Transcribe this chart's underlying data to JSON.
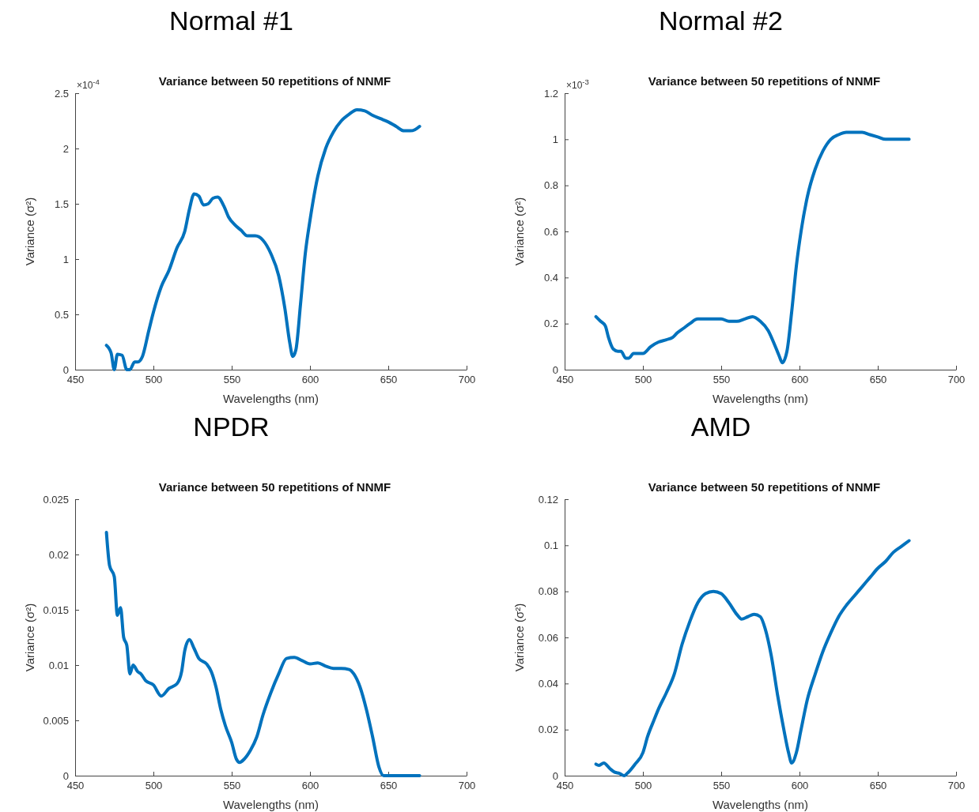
{
  "chart_data": [
    {
      "type": "line",
      "title": "Normal #1",
      "subtitle": "Variance between 50 repetitions of NNMF",
      "xlabel": "Wavelengths (nm)",
      "ylabel": "Variance (σ²)",
      "annotations": [
        "×10$^{-4}$"
      ],
      "xlim": [
        450,
        700
      ],
      "xticks": [
        450,
        500,
        550,
        600,
        650,
        700
      ],
      "ylim": [
        0,
        2.5
      ],
      "yticks": [
        0,
        0.5,
        1,
        1.5,
        2,
        2.5
      ],
      "series": [
        {
          "color": "#0072bd",
          "x": [
            470,
            473,
            475,
            477,
            480,
            483,
            485,
            488,
            490,
            493,
            497,
            500,
            505,
            510,
            515,
            520,
            523,
            526,
            529,
            532,
            535,
            538,
            541,
            545,
            548,
            552,
            556,
            560,
            565,
            570,
            575,
            580,
            584,
            587,
            589,
            591,
            594,
            597,
            600,
            605,
            610,
            615,
            620,
            625,
            630,
            635,
            640,
            645,
            650,
            655,
            660,
            664,
            667,
            670
          ],
          "values": [
            0.22,
            0.15,
            0.0,
            0.14,
            0.13,
            0.0,
            0.0,
            0.07,
            0.07,
            0.12,
            0.35,
            0.52,
            0.75,
            0.9,
            1.1,
            1.25,
            1.45,
            1.59,
            1.57,
            1.49,
            1.5,
            1.55,
            1.56,
            1.48,
            1.38,
            1.31,
            1.26,
            1.21,
            1.21,
            1.17,
            1.05,
            0.85,
            0.55,
            0.25,
            0.12,
            0.18,
            0.6,
            1.05,
            1.35,
            1.75,
            2.0,
            2.15,
            2.25,
            2.31,
            2.35,
            2.34,
            2.3,
            2.27,
            2.24,
            2.2,
            2.16,
            2.16,
            2.17,
            2.2
          ]
        }
      ]
    },
    {
      "type": "line",
      "title": "Normal #2",
      "subtitle": "Variance between 50 repetitions of NNMF",
      "xlabel": "Wavelengths (nm)",
      "ylabel": "Variance (σ²)",
      "annotations": [
        "×10$^{-3}$"
      ],
      "xlim": [
        450,
        700
      ],
      "xticks": [
        450,
        500,
        550,
        600,
        650,
        700
      ],
      "ylim": [
        0,
        1.2
      ],
      "yticks": [
        0,
        0.2,
        0.4,
        0.6,
        0.8,
        1,
        1.2
      ],
      "series": [
        {
          "color": "#0072bd",
          "x": [
            470,
            473,
            476,
            478,
            481,
            484,
            486,
            489,
            491,
            494,
            497,
            500,
            505,
            510,
            515,
            519,
            522,
            526,
            530,
            535,
            540,
            545,
            550,
            555,
            560,
            565,
            570,
            575,
            580,
            584,
            587,
            589,
            592,
            595,
            598,
            601,
            605,
            610,
            615,
            620,
            625,
            630,
            635,
            640,
            645,
            650,
            655,
            660,
            665,
            670
          ],
          "values": [
            0.23,
            0.21,
            0.19,
            0.14,
            0.09,
            0.08,
            0.08,
            0.05,
            0.05,
            0.07,
            0.07,
            0.07,
            0.1,
            0.12,
            0.13,
            0.14,
            0.16,
            0.18,
            0.2,
            0.22,
            0.22,
            0.22,
            0.22,
            0.21,
            0.21,
            0.22,
            0.23,
            0.21,
            0.17,
            0.11,
            0.06,
            0.03,
            0.08,
            0.25,
            0.45,
            0.6,
            0.75,
            0.87,
            0.95,
            1.0,
            1.02,
            1.03,
            1.03,
            1.03,
            1.02,
            1.01,
            1.0,
            1.0,
            1.0,
            1.0
          ]
        }
      ]
    },
    {
      "type": "line",
      "title": "NPDR",
      "subtitle": "Variance between 50 repetitions of NNMF",
      "xlabel": "Wavelengths (nm)",
      "ylabel": "Variance (σ²)",
      "xlim": [
        450,
        700
      ],
      "xticks": [
        450,
        500,
        550,
        600,
        650,
        700
      ],
      "ylim": [
        0,
        0.025
      ],
      "yticks": [
        0,
        0.005,
        0.01,
        0.015,
        0.02,
        0.025
      ],
      "series": [
        {
          "color": "#0072bd",
          "x": [
            470,
            472,
            475,
            477,
            479,
            481,
            483,
            485,
            487,
            490,
            492,
            495,
            500,
            505,
            510,
            515,
            518,
            520,
            523,
            526,
            529,
            534,
            537,
            540,
            543,
            546,
            550,
            553,
            555,
            558,
            562,
            566,
            570,
            575,
            580,
            585,
            590,
            595,
            600,
            605,
            610,
            615,
            620,
            625,
            628,
            632,
            636,
            640,
            644,
            647,
            650,
            660,
            670
          ],
          "values": [
            0.022,
            0.019,
            0.018,
            0.0145,
            0.0152,
            0.0125,
            0.0118,
            0.0092,
            0.01,
            0.0094,
            0.0092,
            0.0086,
            0.0082,
            0.0072,
            0.0079,
            0.0083,
            0.0094,
            0.0113,
            0.0123,
            0.0115,
            0.0106,
            0.0101,
            0.0094,
            0.008,
            0.006,
            0.0045,
            0.003,
            0.0015,
            0.0012,
            0.0015,
            0.0023,
            0.0035,
            0.0055,
            0.0075,
            0.0092,
            0.0106,
            0.0107,
            0.0104,
            0.0101,
            0.0102,
            0.0099,
            0.0097,
            0.0097,
            0.0096,
            0.0092,
            0.008,
            0.006,
            0.0035,
            0.0008,
            0.0,
            0.0,
            0.0,
            0.0
          ]
        }
      ]
    },
    {
      "type": "line",
      "title": "AMD",
      "subtitle": "Variance between 50 repetitions of NNMF",
      "xlabel": "Wavelengths (nm)",
      "ylabel": "Variance (σ²)",
      "xlim": [
        450,
        700
      ],
      "xticks": [
        450,
        500,
        550,
        600,
        650,
        700
      ],
      "ylim": [
        0,
        0.12
      ],
      "yticks": [
        0,
        0.02,
        0.04,
        0.06,
        0.08,
        0.1,
        0.12
      ],
      "series": [
        {
          "color": "#0072bd",
          "x": [
            470,
            472,
            475,
            479,
            482,
            485,
            488,
            490,
            495,
            500,
            503,
            507,
            510,
            515,
            520,
            525,
            530,
            535,
            540,
            545,
            550,
            555,
            560,
            563,
            567,
            571,
            575,
            578,
            582,
            586,
            590,
            593,
            595,
            598,
            601,
            605,
            610,
            615,
            620,
            625,
            630,
            635,
            640,
            645,
            650,
            655,
            660,
            665,
            670
          ],
          "values": [
            0.005,
            0.0045,
            0.0055,
            0.003,
            0.0015,
            0.001,
            0.0,
            0.001,
            0.005,
            0.01,
            0.017,
            0.024,
            0.029,
            0.036,
            0.044,
            0.057,
            0.067,
            0.075,
            0.079,
            0.08,
            0.079,
            0.075,
            0.07,
            0.068,
            0.069,
            0.07,
            0.069,
            0.064,
            0.052,
            0.035,
            0.02,
            0.01,
            0.0055,
            0.01,
            0.02,
            0.033,
            0.044,
            0.054,
            0.062,
            0.069,
            0.074,
            0.078,
            0.082,
            0.086,
            0.09,
            0.093,
            0.097,
            0.0995,
            0.102
          ]
        }
      ]
    }
  ]
}
